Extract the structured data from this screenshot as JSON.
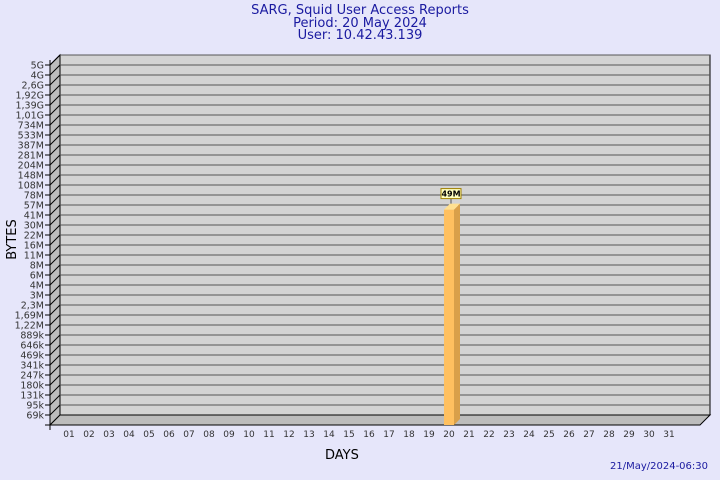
{
  "chart_data": {
    "type": "bar",
    "title": "SARG, Squid User Access Reports",
    "subtitle_period": "Period: 20 May 2024",
    "subtitle_user": "User: 10.42.43.139",
    "xlabel": "DAYS",
    "ylabel": "BYTES",
    "yscale": "log",
    "yticks": [
      "5G",
      "4G",
      "2,6G",
      "1,92G",
      "1,39G",
      "1,01G",
      "734M",
      "533M",
      "387M",
      "281M",
      "204M",
      "148M",
      "108M",
      "78M",
      "57M",
      "41M",
      "30M",
      "22M",
      "16M",
      "11M",
      "8M",
      "6M",
      "4M",
      "3M",
      "2,3M",
      "1,69M",
      "1,22M",
      "889k",
      "646k",
      "469k",
      "341k",
      "247k",
      "180k",
      "131k",
      "95k",
      "69k"
    ],
    "ytick_values": [
      5000000000.0,
      4000000000.0,
      2600000000.0,
      1920000000.0,
      1390000000.0,
      1010000000.0,
      734000000.0,
      533000000.0,
      387000000.0,
      281000000.0,
      204000000.0,
      148000000.0,
      108000000.0,
      78000000.0,
      57000000.0,
      41000000.0,
      30000000.0,
      22000000.0,
      16000000.0,
      11000000.0,
      8000000.0,
      6000000.0,
      4000000.0,
      3000000.0,
      2300000.0,
      1690000.0,
      1220000.0,
      889000.0,
      646000.0,
      469000.0,
      341000.0,
      247000.0,
      180000.0,
      131000.0,
      95000.0,
      69000.0
    ],
    "categories": [
      "01",
      "02",
      "03",
      "04",
      "05",
      "06",
      "07",
      "08",
      "09",
      "10",
      "11",
      "12",
      "13",
      "14",
      "15",
      "16",
      "17",
      "18",
      "19",
      "20",
      "21",
      "22",
      "23",
      "24",
      "25",
      "26",
      "27",
      "28",
      "29",
      "30",
      "31"
    ],
    "bars": [
      {
        "day": "20",
        "value": 49000000,
        "label": "49M"
      }
    ],
    "grid": true,
    "colors": {
      "bar": "#ffc060",
      "bar_side": "#d9a04a",
      "wall": "#d3d3d3",
      "title": "#1a1aa0"
    }
  },
  "footer_timestamp": "21/May/2024-06:30"
}
